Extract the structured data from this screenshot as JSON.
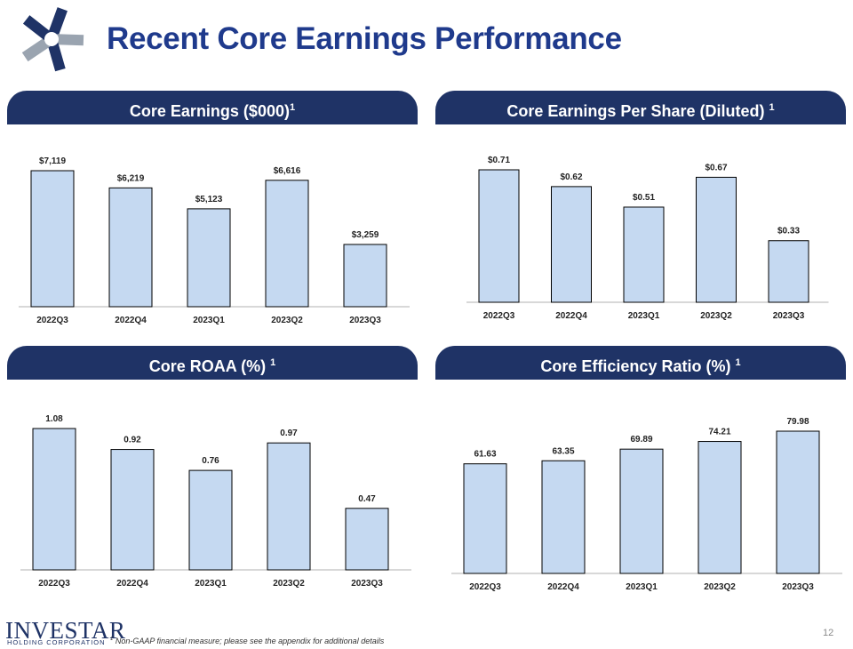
{
  "slide": {
    "title": "Recent Core Earnings Performance",
    "page_number": "12",
    "company_name": "INVESTAR",
    "company_sub": "HOLDING CORPORATION",
    "footnote_marker": "1",
    "footnote_text": "Non-GAAP financial measure; please see the appendix for additional details",
    "colors": {
      "header_bg": "#1f3366",
      "title": "#1f3a8c",
      "bar_fill": "#c5d9f1"
    }
  },
  "chart_data": [
    {
      "id": "core-earnings",
      "type": "bar",
      "title": "Core Earnings ($000)",
      "title_superscript": "1",
      "categories": [
        "2022Q3",
        "2022Q4",
        "2023Q1",
        "2023Q2",
        "2023Q3"
      ],
      "values": [
        7119,
        6219,
        5123,
        6616,
        3259
      ],
      "labels": [
        "$7,119",
        "$6,219",
        "$5,123",
        "$6,616",
        "$3,259"
      ],
      "ylim": [
        0,
        7119
      ],
      "xlabel": "",
      "ylabel": "",
      "grid": false
    },
    {
      "id": "core-eps",
      "type": "bar",
      "title": "Core Earnings Per Share (Diluted)",
      "title_superscript": "1",
      "categories": [
        "2022Q3",
        "2022Q4",
        "2023Q1",
        "2023Q2",
        "2023Q3"
      ],
      "values": [
        0.71,
        0.62,
        0.51,
        0.67,
        0.33
      ],
      "labels": [
        "$0.71",
        "$0.62",
        "$0.51",
        "$0.67",
        "$0.33"
      ],
      "ylim": [
        0,
        0.71
      ],
      "xlabel": "",
      "ylabel": "",
      "grid": false
    },
    {
      "id": "core-roaa",
      "type": "bar",
      "title": "Core ROAA (%)",
      "title_superscript": "1",
      "categories": [
        "2022Q3",
        "2022Q4",
        "2023Q1",
        "2023Q2",
        "2023Q3"
      ],
      "values": [
        1.08,
        0.92,
        0.76,
        0.97,
        0.47
      ],
      "labels": [
        "1.08",
        "0.92",
        "0.76",
        "0.97",
        "0.47"
      ],
      "ylim": [
        0,
        1.08
      ],
      "xlabel": "",
      "ylabel": "",
      "grid": false
    },
    {
      "id": "core-efficiency",
      "type": "bar",
      "title": "Core Efficiency Ratio (%)",
      "title_superscript": "1",
      "categories": [
        "2022Q3",
        "2022Q4",
        "2023Q1",
        "2023Q2",
        "2023Q3"
      ],
      "values": [
        61.63,
        63.35,
        69.89,
        74.21,
        79.98
      ],
      "labels": [
        "61.63",
        "63.35",
        "69.89",
        "74.21",
        "79.98"
      ],
      "ylim": [
        0,
        79.98
      ],
      "xlabel": "",
      "ylabel": "",
      "grid": false
    }
  ]
}
